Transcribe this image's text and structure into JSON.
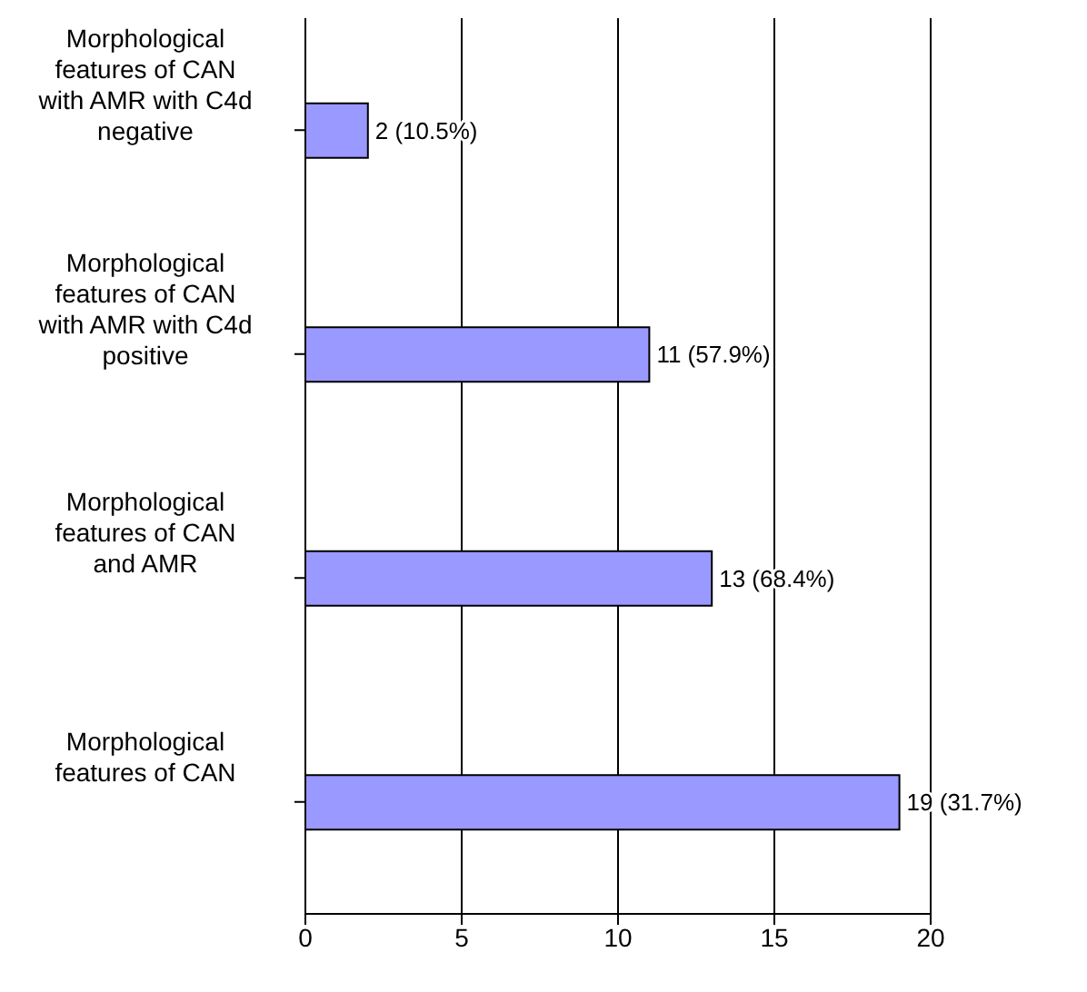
{
  "chart_data": {
    "type": "bar",
    "orientation": "horizontal",
    "categories": [
      "Morphological features of CAN with AMR with C4d negative",
      "Morphological features of CAN with AMR with C4d positive",
      "Morphological features of CAN and AMR",
      "Morphological features of CAN"
    ],
    "values": [
      2,
      11,
      13,
      19
    ],
    "value_labels": [
      "2 (10.5%)",
      "11 (57.9%)",
      "13 (68.4%)",
      "19 (31.7%)"
    ],
    "color": "#9999ff",
    "xlim": [
      0,
      20
    ],
    "xticks": [
      0,
      5,
      10,
      15,
      20
    ],
    "grid": "x"
  }
}
